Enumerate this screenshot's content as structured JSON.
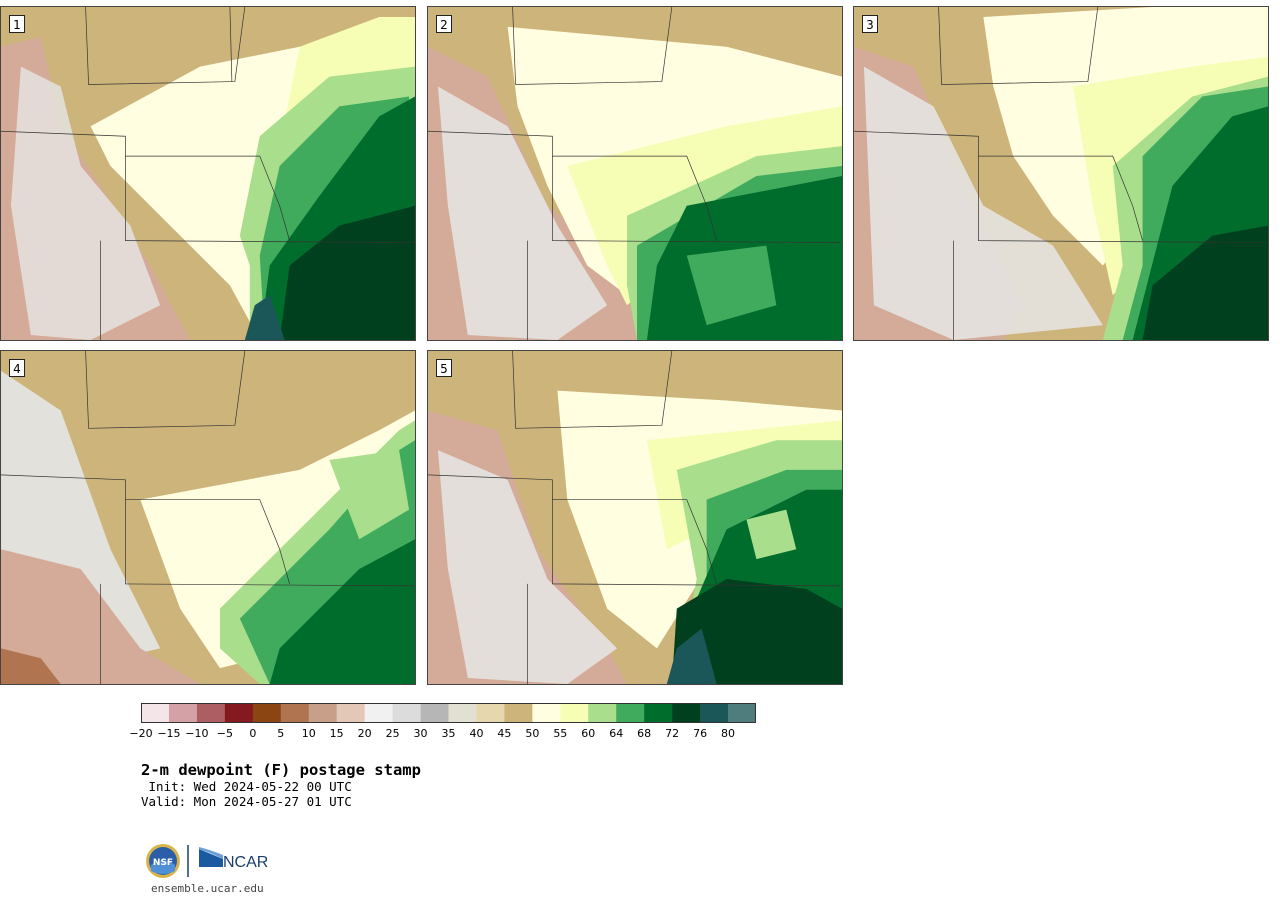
{
  "panels": [
    {
      "label": "1"
    },
    {
      "label": "2"
    },
    {
      "label": "3"
    },
    {
      "label": "4"
    },
    {
      "label": "5"
    }
  ],
  "colorbar": {
    "colors": [
      "#f4e6e8",
      "#d4a1a7",
      "#ad5e63",
      "#851920",
      "#8b4513",
      "#b07550",
      "#c8a089",
      "#e3c8b8",
      "#f1f1f1",
      "#dcdcdc",
      "#b6b6b6",
      "#e1e0d2",
      "#e6d7af",
      "#cdb47a",
      "#fffee0",
      "#f5feb4",
      "#a8de8c",
      "#41ab5d",
      "#006d2c",
      "#00401e",
      "#1b5758",
      "#4f7c7d"
    ],
    "ticks": [
      "−20",
      "−15",
      "−10",
      "−5",
      "0",
      "5",
      "10",
      "15",
      "20",
      "25",
      "30",
      "35",
      "40",
      "45",
      "50",
      "55",
      "60",
      "64",
      "68",
      "72",
      "76",
      "80"
    ]
  },
  "title": "2-m dewpoint (F) postage stamp",
  "init": " Init: Wed 2024-05-22 00 UTC",
  "valid": "Valid: Mon 2024-05-27 01 UTC",
  "logos": {
    "nsf": "NSF",
    "ncar": "NCAR"
  },
  "site": "ensemble.ucar.edu"
}
